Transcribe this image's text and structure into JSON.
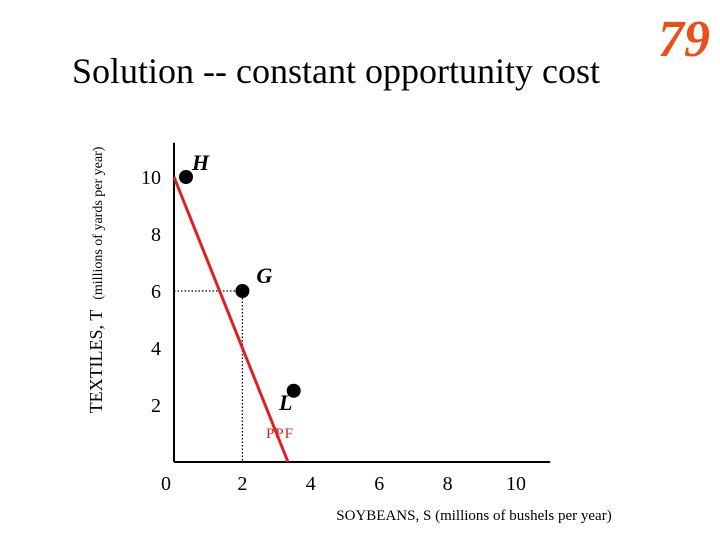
{
  "slide": {
    "title": "Solution -- constant opportunity cost",
    "number": "79"
  },
  "colors": {
    "accent": "#e8501a",
    "ppf_line": "#e02020",
    "text": "#000000"
  },
  "chart_data": {
    "type": "line",
    "xlabel": "SOYBEANS, S (millions of bushels per year)",
    "ylabel_main": "TEXTILES, T",
    "ylabel_unit": "(millions of yards per year)",
    "xlim": [
      0,
      11
    ],
    "ylim": [
      0,
      11.2
    ],
    "x_ticks": [
      "0",
      "2",
      "4",
      "6",
      "8",
      "10"
    ],
    "y_ticks": [
      "2",
      "4",
      "6",
      "8",
      "10"
    ],
    "series": [
      {
        "name": "PPF",
        "points": [
          [
            0,
            10
          ],
          [
            3.3333,
            0
          ]
        ]
      }
    ],
    "points": [
      {
        "label": "H",
        "x": 0,
        "y": 10
      },
      {
        "label": "G",
        "x": 2,
        "y": 6
      },
      {
        "label": "L",
        "x": 3.5,
        "y": 2.5
      }
    ],
    "reference_lines": [
      {
        "point": "G",
        "x": 2,
        "y": 6,
        "style": "dotted"
      }
    ]
  }
}
